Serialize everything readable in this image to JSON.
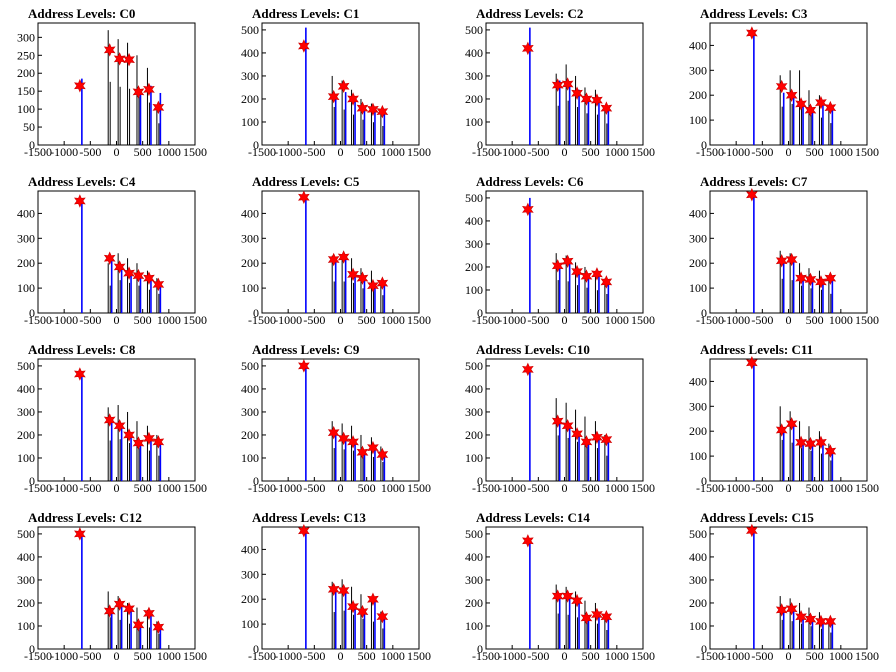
{
  "colors": {
    "histogram": "#000000",
    "peak_lines": "#0000ff",
    "markers": "#ff0000",
    "marker_stroke": "#cc0000"
  },
  "icons": {
    "peak_marker": "red-star-marker"
  },
  "x_tick_labels": [
    "-1500",
    "-1000",
    "-500",
    "0",
    "500",
    "1000",
    "1500"
  ],
  "chart_data": [
    {
      "title": "Address Levels: C0",
      "type": "bar",
      "xlim": [
        -1500,
        1500
      ],
      "ylim": [
        0,
        340
      ],
      "yticks": [
        0,
        50,
        100,
        150,
        200,
        250,
        300
      ],
      "peaks_x": [
        -700,
        -130,
        60,
        240,
        420,
        620,
        800
      ],
      "black_heights": [
        0,
        320,
        295,
        285,
        250,
        215,
        110
      ],
      "blue_heights": [
        185,
        0,
        0,
        0,
        150,
        165,
        145
      ],
      "stars": [
        165,
        265,
        240,
        238,
        148,
        155,
        105
      ]
    },
    {
      "title": "Address Levels: C1",
      "type": "bar",
      "xlim": [
        -1500,
        1500
      ],
      "ylim": [
        0,
        530
      ],
      "yticks": [
        0,
        100,
        200,
        300,
        400,
        500
      ],
      "peaks_x": [
        -700,
        -130,
        60,
        240,
        420,
        620,
        800
      ],
      "black_heights": [
        0,
        300,
        280,
        240,
        200,
        180,
        150
      ],
      "blue_heights": [
        510,
        200,
        230,
        210,
        160,
        160,
        135
      ],
      "stars": [
        430,
        210,
        255,
        200,
        160,
        155,
        145
      ]
    },
    {
      "title": "Address Levels: C2",
      "type": "bar",
      "xlim": [
        -1500,
        1500
      ],
      "ylim": [
        0,
        530
      ],
      "yticks": [
        0,
        100,
        200,
        300,
        400,
        500
      ],
      "peaks_x": [
        -700,
        -130,
        60,
        240,
        420,
        620,
        800
      ],
      "black_heights": [
        0,
        310,
        350,
        300,
        250,
        240,
        170
      ],
      "blue_heights": [
        510,
        280,
        270,
        240,
        210,
        200,
        160
      ],
      "stars": [
        420,
        260,
        265,
        225,
        200,
        195,
        160
      ]
    },
    {
      "title": "Address Levels: C3",
      "type": "bar",
      "xlim": [
        -1500,
        1500
      ],
      "ylim": [
        0,
        490
      ],
      "yticks": [
        0,
        100,
        200,
        300,
        400
      ],
      "peaks_x": [
        -700,
        -130,
        60,
        240,
        420,
        620,
        800
      ],
      "black_heights": [
        0,
        280,
        300,
        300,
        220,
        200,
        160
      ],
      "blue_heights": [
        460,
        210,
        190,
        170,
        140,
        160,
        150
      ],
      "stars": [
        450,
        235,
        200,
        165,
        140,
        170,
        150
      ]
    },
    {
      "title": "Address Levels: C4",
      "type": "bar",
      "xlim": [
        -1500,
        1500
      ],
      "ylim": [
        0,
        490
      ],
      "yticks": [
        0,
        100,
        200,
        300,
        400
      ],
      "peaks_x": [
        -700,
        -130,
        60,
        240,
        420,
        620,
        800
      ],
      "black_heights": [
        0,
        200,
        240,
        220,
        200,
        170,
        140
      ],
      "blue_heights": [
        460,
        210,
        180,
        150,
        150,
        140,
        120
      ],
      "stars": [
        450,
        220,
        185,
        160,
        150,
        140,
        115
      ]
    },
    {
      "title": "Address Levels: C5",
      "type": "bar",
      "xlim": [
        -1500,
        1500
      ],
      "ylim": [
        0,
        490
      ],
      "yticks": [
        0,
        100,
        200,
        300,
        400
      ],
      "peaks_x": [
        -700,
        -130,
        60,
        240,
        420,
        620,
        800
      ],
      "black_heights": [
        0,
        230,
        230,
        220,
        180,
        170,
        130
      ],
      "blue_heights": [
        470,
        220,
        220,
        160,
        140,
        120,
        120
      ],
      "stars": [
        465,
        215,
        225,
        155,
        140,
        110,
        120
      ]
    },
    {
      "title": "Address Levels: C6",
      "type": "bar",
      "xlim": [
        -1500,
        1500
      ],
      "ylim": [
        0,
        530
      ],
      "yticks": [
        0,
        100,
        200,
        300,
        400,
        500
      ],
      "peaks_x": [
        -700,
        -130,
        60,
        240,
        420,
        620,
        800
      ],
      "black_heights": [
        0,
        260,
        250,
        220,
        200,
        180,
        150
      ],
      "blue_heights": [
        500,
        210,
        230,
        180,
        160,
        160,
        140
      ],
      "stars": [
        450,
        205,
        225,
        180,
        160,
        170,
        135
      ]
    },
    {
      "title": "Address Levels: C7",
      "type": "bar",
      "xlim": [
        -1500,
        1500
      ],
      "ylim": [
        0,
        490
      ],
      "yticks": [
        0,
        100,
        200,
        300,
        400
      ],
      "peaks_x": [
        -700,
        -130,
        60,
        240,
        420,
        620,
        800
      ],
      "black_heights": [
        0,
        250,
        240,
        200,
        180,
        170,
        140
      ],
      "blue_heights": [
        470,
        200,
        210,
        140,
        130,
        130,
        140
      ],
      "stars": [
        475,
        210,
        215,
        140,
        135,
        125,
        140
      ]
    },
    {
      "title": "Address Levels: C8",
      "type": "bar",
      "xlim": [
        -1500,
        1500
      ],
      "ylim": [
        0,
        530
      ],
      "yticks": [
        0,
        100,
        200,
        300,
        400,
        500
      ],
      "peaks_x": [
        -700,
        -130,
        60,
        240,
        420,
        620,
        800
      ],
      "black_heights": [
        0,
        320,
        330,
        300,
        260,
        240,
        200
      ],
      "blue_heights": [
        470,
        260,
        240,
        200,
        170,
        190,
        170
      ],
      "stars": [
        465,
        265,
        240,
        200,
        165,
        185,
        170
      ]
    },
    {
      "title": "Address Levels: C9",
      "type": "bar",
      "xlim": [
        -1500,
        1500
      ],
      "ylim": [
        0,
        530
      ],
      "yticks": [
        0,
        100,
        200,
        300,
        400,
        500
      ],
      "peaks_x": [
        -700,
        -130,
        60,
        240,
        420,
        620,
        800
      ],
      "black_heights": [
        0,
        260,
        250,
        240,
        200,
        190,
        150
      ],
      "blue_heights": [
        500,
        200,
        180,
        170,
        130,
        140,
        120
      ],
      "stars": [
        500,
        210,
        185,
        170,
        125,
        145,
        115
      ]
    },
    {
      "title": "Address Levels: C10",
      "type": "bar",
      "xlim": [
        -1500,
        1500
      ],
      "ylim": [
        0,
        530
      ],
      "yticks": [
        0,
        100,
        200,
        300,
        400,
        500
      ],
      "peaks_x": [
        -700,
        -130,
        60,
        240,
        420,
        620,
        800
      ],
      "black_heights": [
        0,
        360,
        340,
        310,
        280,
        260,
        200
      ],
      "blue_heights": [
        490,
        260,
        240,
        210,
        170,
        190,
        180
      ],
      "stars": [
        485,
        260,
        240,
        205,
        170,
        190,
        180
      ]
    },
    {
      "title": "Address Levels: C11",
      "type": "bar",
      "xlim": [
        -1500,
        1500
      ],
      "ylim": [
        0,
        490
      ],
      "yticks": [
        0,
        100,
        200,
        300,
        400
      ],
      "peaks_x": [
        -700,
        -130,
        60,
        240,
        420,
        620,
        800
      ],
      "black_heights": [
        0,
        300,
        280,
        240,
        220,
        200,
        150
      ],
      "blue_heights": [
        480,
        210,
        230,
        160,
        150,
        160,
        120
      ],
      "stars": [
        475,
        205,
        230,
        155,
        150,
        155,
        120
      ]
    },
    {
      "title": "Address Levels: C12",
      "type": "bar",
      "xlim": [
        -1500,
        1500
      ],
      "ylim": [
        0,
        530
      ],
      "yticks": [
        0,
        100,
        200,
        300,
        400,
        500
      ],
      "peaks_x": [
        -700,
        -130,
        60,
        240,
        420,
        620,
        800
      ],
      "black_heights": [
        0,
        250,
        230,
        200,
        180,
        170,
        120
      ],
      "blue_heights": [
        500,
        170,
        200,
        180,
        110,
        160,
        100
      ],
      "stars": [
        500,
        165,
        195,
        175,
        105,
        155,
        95
      ]
    },
    {
      "title": "Address Levels: C13",
      "type": "bar",
      "xlim": [
        -1500,
        1500
      ],
      "ylim": [
        0,
        490
      ],
      "yticks": [
        0,
        100,
        200,
        300,
        400
      ],
      "peaks_x": [
        -700,
        -130,
        60,
        240,
        420,
        620,
        800
      ],
      "black_heights": [
        0,
        270,
        280,
        250,
        220,
        200,
        150
      ],
      "blue_heights": [
        480,
        240,
        240,
        170,
        150,
        200,
        130
      ],
      "stars": [
        475,
        240,
        235,
        170,
        150,
        200,
        130
      ]
    },
    {
      "title": "Address Levels: C14",
      "type": "bar",
      "xlim": [
        -1500,
        1500
      ],
      "ylim": [
        0,
        530
      ],
      "yticks": [
        0,
        100,
        200,
        300,
        400,
        500
      ],
      "peaks_x": [
        -700,
        -130,
        60,
        240,
        420,
        620,
        800
      ],
      "black_heights": [
        0,
        280,
        270,
        250,
        210,
        200,
        150
      ],
      "blue_heights": [
        480,
        230,
        230,
        210,
        140,
        150,
        140
      ],
      "stars": [
        470,
        230,
        230,
        210,
        135,
        150,
        140
      ]
    },
    {
      "title": "Address Levels: C15",
      "type": "bar",
      "xlim": [
        -1500,
        1500
      ],
      "ylim": [
        0,
        530
      ],
      "yticks": [
        0,
        100,
        200,
        300,
        400,
        500
      ],
      "peaks_x": [
        -700,
        -130,
        60,
        240,
        420,
        620,
        800
      ],
      "black_heights": [
        0,
        230,
        220,
        200,
        180,
        160,
        130
      ],
      "blue_heights": [
        520,
        180,
        180,
        150,
        130,
        130,
        120
      ],
      "stars": [
        515,
        170,
        175,
        140,
        130,
        120,
        120
      ]
    }
  ]
}
